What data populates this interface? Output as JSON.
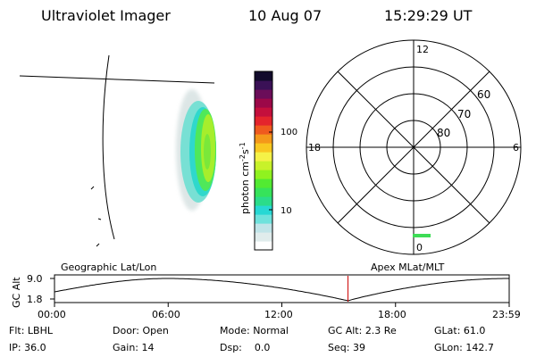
{
  "header": {
    "instrument": "Ultraviolet Imager",
    "date": "10 Aug 07",
    "time": "15:29:29 UT"
  },
  "colorbar": {
    "label": "photon cm",
    "exp1": "-2",
    "mid": "s",
    "exp2": "-1",
    "ticks": [
      "100",
      "10"
    ],
    "colors": [
      "#ffffff",
      "#e0ecec",
      "#c0e4e8",
      "#6fe2dc",
      "#27d8d4",
      "#2bdc8a",
      "#36e35a",
      "#52ea32",
      "#90f21f",
      "#c8f22a",
      "#f5f247",
      "#f8c820",
      "#f4981a",
      "#ef5a1e",
      "#e4242c",
      "#c40f3c",
      "#9c0848",
      "#6b0d59",
      "#3a1156",
      "#120b2c"
    ]
  },
  "polar_plot": {
    "mlt_labels": [
      "12",
      "18",
      "6",
      "0"
    ],
    "lat_labels": [
      "60",
      "70",
      "80"
    ]
  },
  "timeline": {
    "left_label": "Geographic Lat/Lon",
    "right_label": "Apex MLat/MLT",
    "y_title": "GC Alt",
    "y_ticks": [
      "9.0",
      "1.8"
    ],
    "x_ticks": [
      "00:00",
      "06:00",
      "12:00",
      "18:00",
      "23:59"
    ],
    "marker_time": "15:29:29",
    "marker_color": "#cc0000"
  },
  "status": {
    "filter_label": "Flt:",
    "filter_value": "LBHL",
    "door_label": "Door:",
    "door_value": "Open",
    "mode_label": "Mode:",
    "mode_value": "Normal",
    "gcalt_label": "GC Alt:",
    "gcalt_value": "2.3 Re",
    "glat_label": "GLat:",
    "glat_value": "61.0",
    "ip_label": "IP:",
    "ip_value": "36.0",
    "gain_label": "Gain:",
    "gain_value": "14",
    "dsp_label": "Dsp:",
    "dsp_value": "0.0",
    "seq_label": "Seq:",
    "seq_value": "39",
    "glon_label": "GLon:",
    "glon_value": "142.7"
  }
}
